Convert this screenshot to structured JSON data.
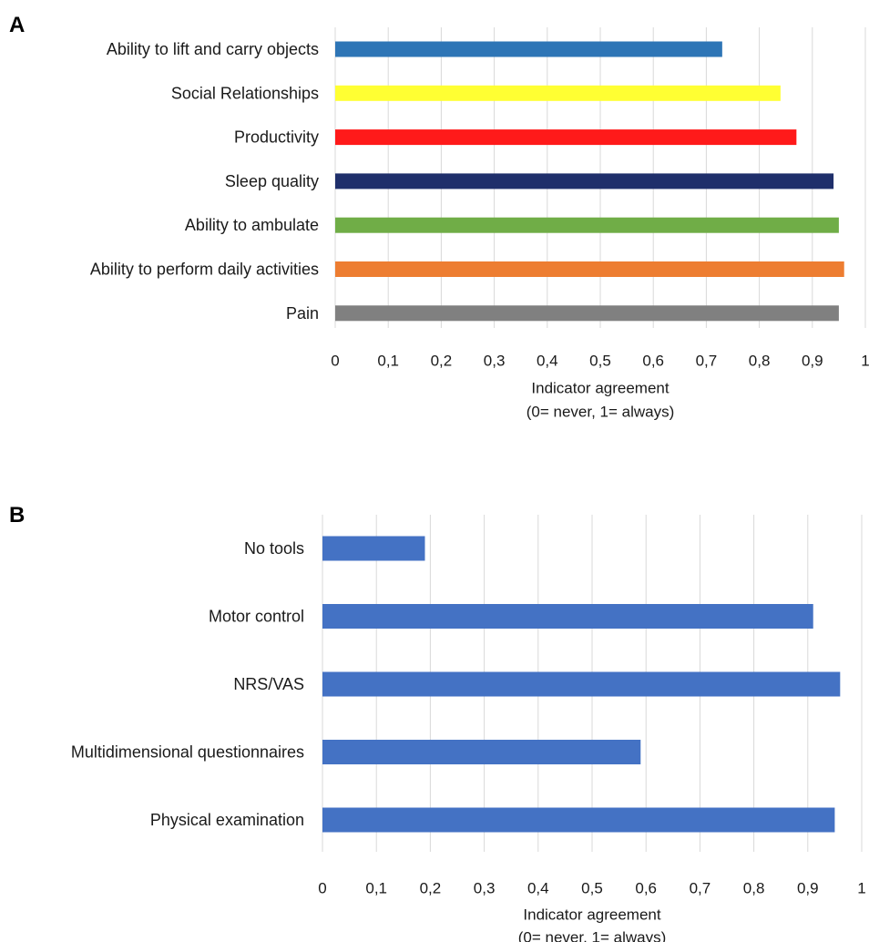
{
  "panels": [
    {
      "letter": "A"
    },
    {
      "letter": "B"
    }
  ],
  "chart_data": [
    {
      "type": "bar",
      "orientation": "horizontal",
      "panel": "A",
      "categories": [
        "Ability to lift and carry objects",
        "Social Relationships",
        "Productivity",
        "Sleep quality",
        "Ability to ambulate",
        "Ability to perform daily activities",
        "Pain"
      ],
      "values": [
        0.73,
        0.84,
        0.87,
        0.94,
        0.95,
        0.96,
        0.95
      ],
      "colors": [
        "#2e75b6",
        "#ffff33",
        "#ff1a1a",
        "#1f2f6b",
        "#70ad47",
        "#ed7d31",
        "#808080"
      ],
      "xticks": [
        "0",
        "0,1",
        "0,2",
        "0,3",
        "0,4",
        "0,5",
        "0,6",
        "0,7",
        "0,8",
        "0,9",
        "1"
      ],
      "xlim": [
        0,
        1
      ],
      "xlabel": [
        "Indicator agreement",
        "(0= never, 1= always)"
      ],
      "grid": true
    },
    {
      "type": "bar",
      "orientation": "horizontal",
      "panel": "B",
      "categories": [
        "No tools",
        "Motor control",
        "NRS/VAS",
        "Multidimensional questionnaires",
        "Physical examination"
      ],
      "values": [
        0.19,
        0.91,
        0.96,
        0.59,
        0.95
      ],
      "colors": [
        "#4472c4",
        "#4472c4",
        "#4472c4",
        "#4472c4",
        "#4472c4"
      ],
      "xticks": [
        "0",
        "0,1",
        "0,2",
        "0,3",
        "0,4",
        "0,5",
        "0,6",
        "0,7",
        "0,8",
        "0,9",
        "1"
      ],
      "xlim": [
        0,
        1
      ],
      "xlabel": [
        "Indicator agreement",
        "(0= never, 1= always)"
      ],
      "grid": true
    }
  ]
}
